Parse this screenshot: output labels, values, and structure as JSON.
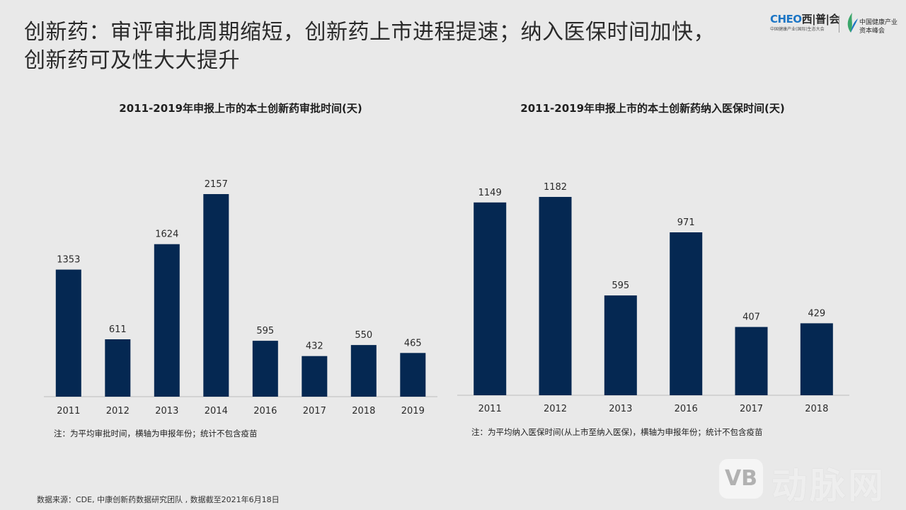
{
  "page": {
    "title_line1": "创新药：审评审批周期缩短，创新药上市进程提速；纳入医保时间加快，",
    "title_line2": "创新药可及性大大提升"
  },
  "logo": {
    "brand_latin": "CHEO",
    "brand_cn": "西|普|会",
    "sub": "中国健康产业(国际)生态大会",
    "summit_line1": "中国健康产业",
    "summit_line2": "资本峰会"
  },
  "chart_data": [
    {
      "type": "bar",
      "title": "2011-2019年申报上市的本土创新药审批时间(天)",
      "categories": [
        "2011",
        "2012",
        "2013",
        "2014",
        "2016",
        "2017",
        "2018",
        "2019"
      ],
      "values": [
        1353,
        611,
        1624,
        2157,
        595,
        432,
        550,
        465
      ],
      "ylim": [
        0,
        2400
      ],
      "note": "注：为平均审批时间，横轴为申报年份；统计不包含疫苗",
      "color": "#052852"
    },
    {
      "type": "bar",
      "title": "2011-2019年申报上市的本土创新药纳入医保时间(天)",
      "categories": [
        "2011",
        "2012",
        "2013",
        "2016",
        "2017",
        "2018"
      ],
      "values": [
        1149,
        1182,
        595,
        971,
        407,
        429
      ],
      "ylim": [
        0,
        1300
      ],
      "note": "注：为平均纳入医保时间(从上市至纳入医保)，横轴为申报年份；统计不包含疫苗",
      "color": "#052852"
    }
  ],
  "footer": {
    "source": "数据来源：CDE, 中康创新药数据研究团队 , 数据截至2021年6月18日"
  },
  "watermark": {
    "badge": "VB",
    "text": "动脉网"
  }
}
